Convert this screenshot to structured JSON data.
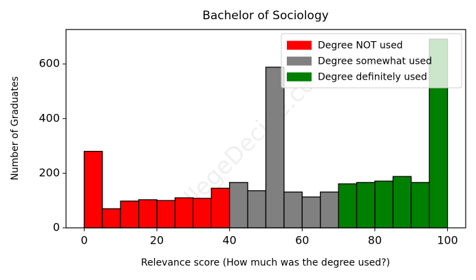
{
  "chart_data": {
    "type": "histogram",
    "title": "Bachelor of Sociology",
    "xlabel": "Relevance score (How much was the degree used?)",
    "ylabel": "Number of Graduates",
    "watermark": "CollegeDecide.com",
    "series": [
      {
        "name": "Degree NOT used",
        "color": "#ff0000",
        "bins": [
          0,
          5,
          10,
          15,
          20,
          25,
          30,
          35,
          40
        ],
        "values": [
          280,
          70,
          98,
          103,
          100,
          110,
          108,
          145
        ]
      },
      {
        "name": "Degree somewhat used",
        "color": "#808080",
        "bins": [
          40,
          45,
          50,
          55,
          60,
          65,
          70
        ],
        "values": [
          166,
          136,
          588,
          131,
          113,
          131
        ]
      },
      {
        "name": "Degree definitely used",
        "color": "#008000",
        "bins": [
          70,
          75,
          80,
          85,
          90,
          95,
          100
        ],
        "values": [
          161,
          166,
          171,
          188,
          166,
          691
        ]
      }
    ],
    "xlim": [
      -5,
      105
    ],
    "ylim": [
      0,
      726
    ],
    "xticks": [
      0,
      20,
      40,
      60,
      80,
      100
    ],
    "yticks": [
      0,
      200,
      400,
      600
    ],
    "legend": "upper right"
  }
}
